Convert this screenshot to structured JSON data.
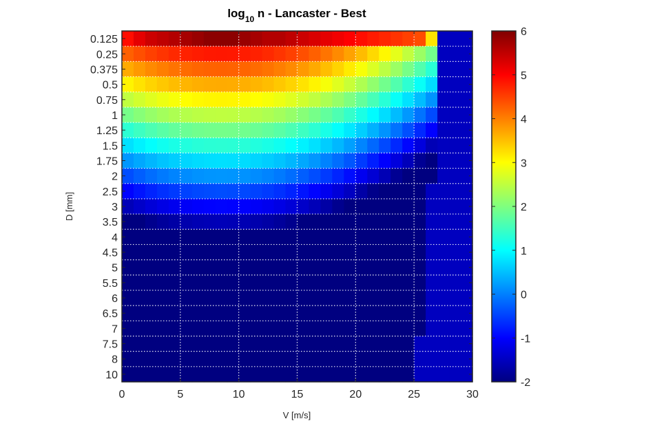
{
  "chart_data": {
    "type": "heatmap",
    "title": {
      "prefix": "log",
      "subscript": "10",
      "suffix": " n - Lancaster - Best"
    },
    "xlabel": "V [m/s]",
    "ylabel": "D [mm]",
    "xlim": [
      0,
      30
    ],
    "x_ticks": [
      0,
      5,
      10,
      15,
      20,
      25,
      30
    ],
    "x_tick_labels": [
      "0",
      "5",
      "10",
      "15",
      "20",
      "25",
      "30"
    ],
    "y_categories": [
      "0.125",
      "0.25",
      "0.375",
      "0.5",
      "0.75",
      "1",
      "1.25",
      "1.5",
      "1.75",
      "2",
      "2.5",
      "3",
      "3.5",
      "4",
      "4.5",
      "5",
      "5.5",
      "6",
      "6.5",
      "7",
      "7.5",
      "8",
      "10"
    ],
    "x_bin_width": 1,
    "x_bin_count": 30,
    "grid": true,
    "colormap": "jet",
    "clim": [
      -2,
      6
    ],
    "colorbar": {
      "location": "right",
      "ticks": [
        -2,
        -1,
        0,
        1,
        2,
        3,
        4,
        5,
        6
      ],
      "tick_labels": [
        "-2",
        "-1",
        "0",
        "1",
        "2",
        "3",
        "4",
        "5",
        "6"
      ]
    },
    "values_note_rows_by_diameter": {
      "0.125": [
        4.9,
        5.2,
        5.4,
        5.5,
        5.6,
        5.7,
        5.8,
        5.9,
        5.9,
        5.9,
        5.8,
        5.7,
        5.6,
        5.6,
        5.5,
        5.4,
        5.3,
        5.2,
        5.1,
        5.0,
        4.9,
        4.8,
        4.7,
        4.6,
        4.5,
        4.4,
        3.2,
        -1.5,
        -1.5,
        -1.5
      ]
    }
  }
}
